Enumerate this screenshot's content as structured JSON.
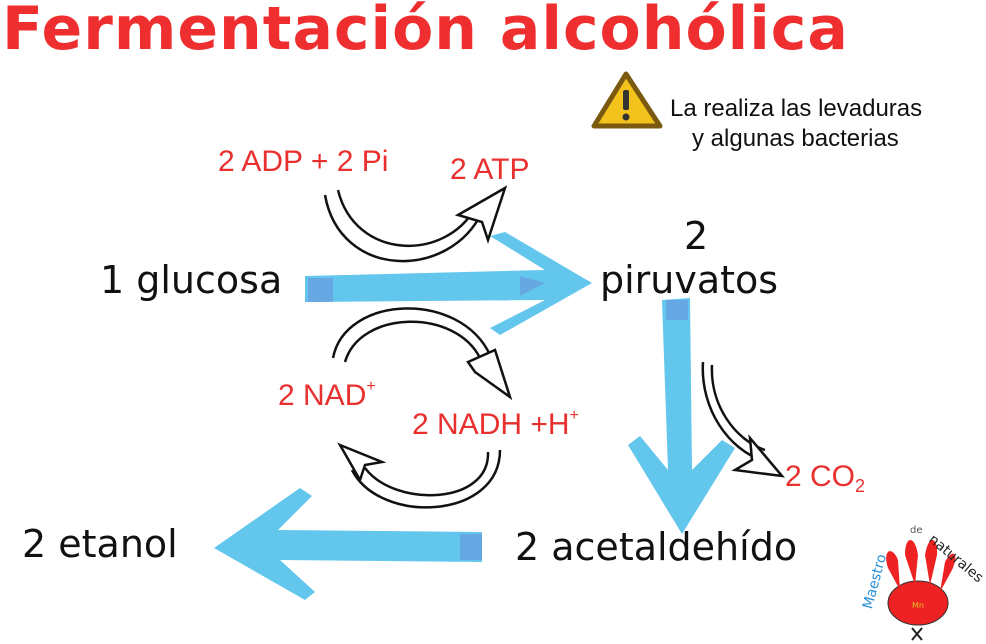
{
  "title": "Fermentación alcohólica",
  "note": {
    "icon": "warning-icon",
    "line1": "La realiza las levaduras",
    "line2": "y algunas bacterias"
  },
  "molecules": {
    "glucose": "1 glucosa",
    "pyruvate_count": "2",
    "pyruvate": "piruvatos",
    "acetaldehyde": "2 acetaldehído",
    "ethanol": "2 etanol"
  },
  "cofactors": {
    "adp": "2 ADP + 2 Pi",
    "atp": "2 ATP",
    "nad": "2 NAD",
    "nad_sup": "+",
    "nadh": "2 NADH +H",
    "nadh_sup": "+",
    "co2": "2 CO",
    "co2_sub": "2"
  },
  "colors": {
    "title": "#ef2f2f",
    "arrows": "#5bc3ec",
    "cofactors": "#e8302e",
    "logo_paw": "#ee2222"
  },
  "logo": {
    "text": "Maestro de naturales"
  }
}
